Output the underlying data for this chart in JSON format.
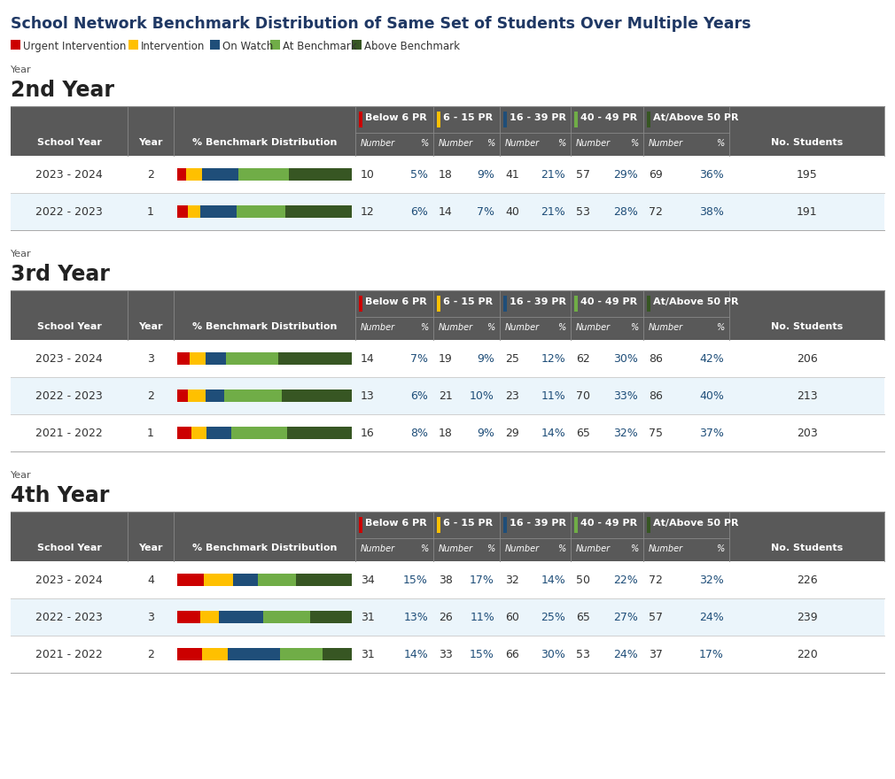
{
  "title": "School Network Benchmark Distribution of Same Set of Students Over Multiple Years",
  "legend_items": [
    {
      "label": "Urgent Intervention",
      "color": "#CC0000"
    },
    {
      "label": "Intervention",
      "color": "#FFC000"
    },
    {
      "label": "On Watch",
      "color": "#1F4E79"
    },
    {
      "label": "At Benchmark",
      "color": "#70AD47"
    },
    {
      "label": "Above Benchmark",
      "color": "#375623"
    }
  ],
  "sections": [
    {
      "year_label": "Year",
      "year_title": "2nd Year",
      "rows": [
        {
          "school_year": "2023 - 2024",
          "year": "2",
          "bar": [
            5,
            9,
            21,
            29,
            36
          ],
          "below6": {
            "num": 10,
            "pct": "5%"
          },
          "p6_15": {
            "num": 18,
            "pct": "9%"
          },
          "p16_39": {
            "num": 41,
            "pct": "21%"
          },
          "p40_49": {
            "num": 57,
            "pct": "29%"
          },
          "at_above": {
            "num": 69,
            "pct": "36%"
          },
          "total": 195,
          "highlight": false
        },
        {
          "school_year": "2022 - 2023",
          "year": "1",
          "bar": [
            6,
            7,
            21,
            28,
            38
          ],
          "below6": {
            "num": 12,
            "pct": "6%"
          },
          "p6_15": {
            "num": 14,
            "pct": "7%"
          },
          "p16_39": {
            "num": 40,
            "pct": "21%"
          },
          "p40_49": {
            "num": 53,
            "pct": "28%"
          },
          "at_above": {
            "num": 72,
            "pct": "38%"
          },
          "total": 191,
          "highlight": true
        }
      ]
    },
    {
      "year_label": "Year",
      "year_title": "3rd Year",
      "rows": [
        {
          "school_year": "2023 - 2024",
          "year": "3",
          "bar": [
            7,
            9,
            12,
            30,
            42
          ],
          "below6": {
            "num": 14,
            "pct": "7%"
          },
          "p6_15": {
            "num": 19,
            "pct": "9%"
          },
          "p16_39": {
            "num": 25,
            "pct": "12%"
          },
          "p40_49": {
            "num": 62,
            "pct": "30%"
          },
          "at_above": {
            "num": 86,
            "pct": "42%"
          },
          "total": 206,
          "highlight": false
        },
        {
          "school_year": "2022 - 2023",
          "year": "2",
          "bar": [
            6,
            10,
            11,
            33,
            40
          ],
          "below6": {
            "num": 13,
            "pct": "6%"
          },
          "p6_15": {
            "num": 21,
            "pct": "10%"
          },
          "p16_39": {
            "num": 23,
            "pct": "11%"
          },
          "p40_49": {
            "num": 70,
            "pct": "33%"
          },
          "at_above": {
            "num": 86,
            "pct": "40%"
          },
          "total": 213,
          "highlight": true
        },
        {
          "school_year": "2021 - 2022",
          "year": "1",
          "bar": [
            8,
            9,
            14,
            32,
            37
          ],
          "below6": {
            "num": 16,
            "pct": "8%"
          },
          "p6_15": {
            "num": 18,
            "pct": "9%"
          },
          "p16_39": {
            "num": 29,
            "pct": "14%"
          },
          "p40_49": {
            "num": 65,
            "pct": "32%"
          },
          "at_above": {
            "num": 75,
            "pct": "37%"
          },
          "total": 203,
          "highlight": false
        }
      ]
    },
    {
      "year_label": "Year",
      "year_title": "4th Year",
      "rows": [
        {
          "school_year": "2023 - 2024",
          "year": "4",
          "bar": [
            15,
            17,
            14,
            22,
            32
          ],
          "below6": {
            "num": 34,
            "pct": "15%"
          },
          "p6_15": {
            "num": 38,
            "pct": "17%"
          },
          "p16_39": {
            "num": 32,
            "pct": "14%"
          },
          "p40_49": {
            "num": 50,
            "pct": "22%"
          },
          "at_above": {
            "num": 72,
            "pct": "32%"
          },
          "total": 226,
          "highlight": false
        },
        {
          "school_year": "2022 - 2023",
          "year": "3",
          "bar": [
            13,
            11,
            25,
            27,
            24
          ],
          "below6": {
            "num": 31,
            "pct": "13%"
          },
          "p6_15": {
            "num": 26,
            "pct": "11%"
          },
          "p16_39": {
            "num": 60,
            "pct": "25%"
          },
          "p40_49": {
            "num": 65,
            "pct": "27%"
          },
          "at_above": {
            "num": 57,
            "pct": "24%"
          },
          "total": 239,
          "highlight": true
        },
        {
          "school_year": "2021 - 2022",
          "year": "2",
          "bar": [
            14,
            15,
            30,
            24,
            17
          ],
          "below6": {
            "num": 31,
            "pct": "14%"
          },
          "p6_15": {
            "num": 33,
            "pct": "15%"
          },
          "p16_39": {
            "num": 66,
            "pct": "30%"
          },
          "p40_49": {
            "num": 53,
            "pct": "24%"
          },
          "at_above": {
            "num": 37,
            "pct": "17%"
          },
          "total": 220,
          "highlight": false
        }
      ]
    }
  ],
  "bar_colors": [
    "#CC0000",
    "#FFC000",
    "#1F4E79",
    "#70AD47",
    "#375623"
  ],
  "header_bg": "#595959",
  "highlight_bg": "#EBF5FB",
  "normal_bg": "#FFFFFF",
  "title_color": "#1F3864",
  "section_label_color": "#555555",
  "pct_color": "#1F4E79",
  "col_indicator_colors": [
    "#CC0000",
    "#FFC000",
    "#1F4E79",
    "#70AD47",
    "#375623"
  ],
  "pr_labels": [
    "Below 6 PR",
    "6 - 15 PR",
    "16 - 39 PR",
    "40 - 49 PR",
    "At/Above 50 PR"
  ],
  "pr_colors": [
    "#CC0000",
    "#FFC000",
    "#1F4E79",
    "#70AD47",
    "#375623"
  ]
}
